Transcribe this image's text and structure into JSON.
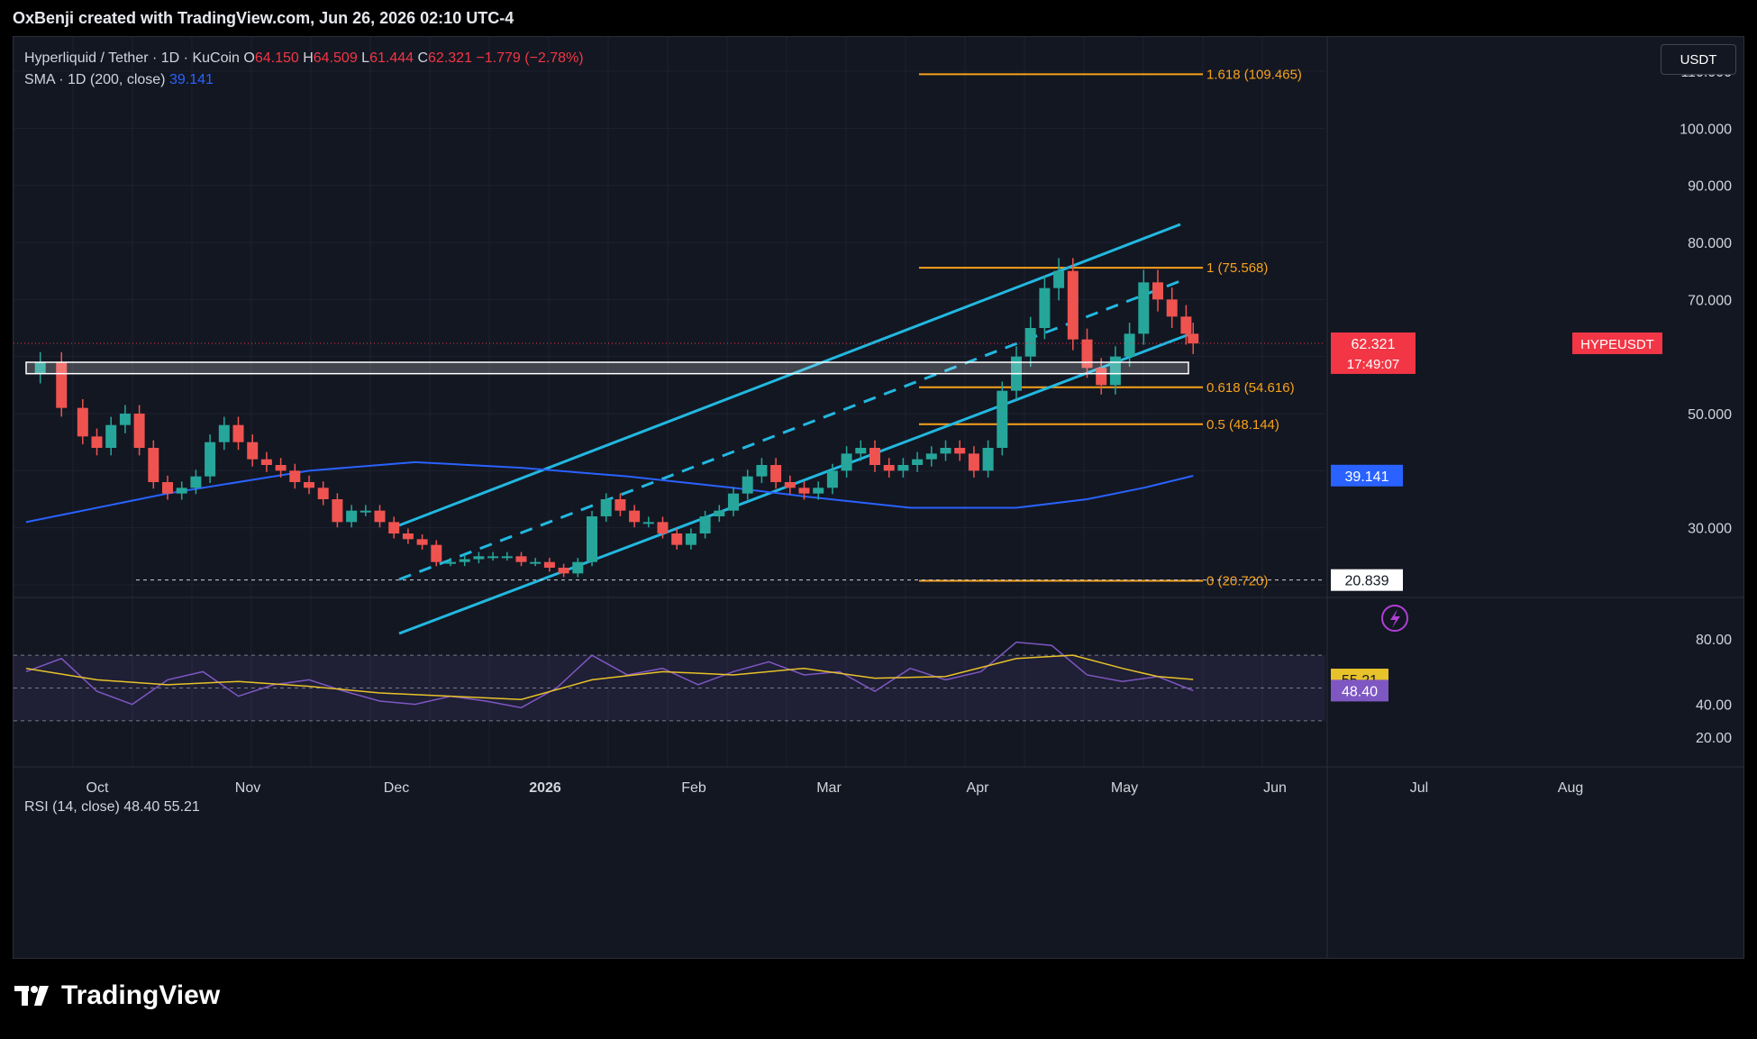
{
  "header": {
    "attribution": "OxBenji created with TradingView.com, Jun 26, 2026 02:10 UTC-4"
  },
  "legend": {
    "symbol": "Hyperliquid / Tether · 1D · KuCoin",
    "open_label": "O",
    "open": "64.150",
    "high_label": "H",
    "high": "64.509",
    "low_label": "L",
    "low": "61.444",
    "close_label": "C",
    "close": "62.321",
    "change": "−1.779 (−2.78%)",
    "sma_label": "SMA · 1D (200, close)",
    "sma_value": "39.141"
  },
  "currency_button": "USDT",
  "price_axis": {
    "ticks": [
      "110.000",
      "100.000",
      "90.000",
      "80.000",
      "70.000",
      "50.000",
      "30.000"
    ],
    "tick_values": [
      110,
      100,
      90,
      80,
      70,
      50,
      30
    ],
    "symbol_tag": "HYPEUSDT",
    "last_price": "62.321",
    "countdown": "17:49:07",
    "sma_tag": "39.141",
    "low_tag": "20.839"
  },
  "fib_levels": [
    {
      "label": "1.618 (109.465)",
      "value": 109.465
    },
    {
      "label": "1 (75.568)",
      "value": 75.568
    },
    {
      "label": "0.618 (54.616)",
      "value": 54.616
    },
    {
      "label": "0.5 (48.144)",
      "value": 48.144
    },
    {
      "label": "0 (20.720)",
      "value": 20.72
    }
  ],
  "rsi": {
    "legend_label": "RSI (14, close)",
    "value": "48.40",
    "ma_value": "55.21",
    "ticks": [
      "80.00",
      "40.00",
      "20.00"
    ],
    "tick_values": [
      80,
      40,
      20
    ]
  },
  "time_axis": [
    "Oct",
    "Nov",
    "Dec",
    "2026",
    "Feb",
    "Mar",
    "Apr",
    "May",
    "Jun",
    "Jul",
    "Aug"
  ],
  "watermark": "TradingView",
  "colors": {
    "background": "#131722",
    "up": "#26a69a",
    "down": "#ef5350",
    "sma": "#2962ff",
    "channel": "#22b8e0",
    "fib": "#f7a21b",
    "rsi": "#7e57c2",
    "rsi_ma": "#e8c22a",
    "last_price": "#f23645"
  },
  "chart_data": {
    "type": "candlestick",
    "symbol": "HYPEUSDT",
    "interval": "1D",
    "last": {
      "open": 64.15,
      "high": 64.509,
      "low": 61.444,
      "close": 62.321
    },
    "sma_200_last": 39.141,
    "swing_low": 20.839,
    "y_range": [
      14,
      115
    ],
    "rsi_range": [
      20,
      85
    ],
    "rsi_bands": [
      70,
      50,
      30
    ],
    "approx_closes": [
      [
        0,
        57
      ],
      [
        2,
        59
      ],
      [
        5,
        51
      ],
      [
        8,
        46
      ],
      [
        10,
        44
      ],
      [
        12,
        48
      ],
      [
        14,
        50
      ],
      [
        16,
        44
      ],
      [
        18,
        38
      ],
      [
        20,
        36
      ],
      [
        22,
        37
      ],
      [
        24,
        39
      ],
      [
        26,
        45
      ],
      [
        28,
        48
      ],
      [
        30,
        45
      ],
      [
        32,
        42
      ],
      [
        34,
        41
      ],
      [
        36,
        40
      ],
      [
        38,
        38
      ],
      [
        40,
        37
      ],
      [
        42,
        35
      ],
      [
        44,
        31
      ],
      [
        46,
        33
      ],
      [
        48,
        33
      ],
      [
        50,
        31
      ],
      [
        52,
        29
      ],
      [
        54,
        28
      ],
      [
        56,
        27
      ],
      [
        58,
        24
      ],
      [
        60,
        24
      ],
      [
        62,
        24.5
      ],
      [
        64,
        25
      ],
      [
        66,
        25
      ],
      [
        68,
        25
      ],
      [
        70,
        24
      ],
      [
        72,
        24
      ],
      [
        74,
        23
      ],
      [
        76,
        22
      ],
      [
        78,
        24
      ],
      [
        80,
        32
      ],
      [
        82,
        35
      ],
      [
        84,
        33
      ],
      [
        86,
        31
      ],
      [
        88,
        31
      ],
      [
        90,
        29
      ],
      [
        92,
        27
      ],
      [
        94,
        29
      ],
      [
        96,
        32
      ],
      [
        98,
        33
      ],
      [
        100,
        36
      ],
      [
        102,
        39
      ],
      [
        104,
        41
      ],
      [
        106,
        38
      ],
      [
        108,
        37
      ],
      [
        110,
        36
      ],
      [
        112,
        37
      ],
      [
        114,
        40
      ],
      [
        116,
        43
      ],
      [
        118,
        44
      ],
      [
        120,
        41
      ],
      [
        122,
        40
      ],
      [
        124,
        41
      ],
      [
        126,
        42
      ],
      [
        128,
        43
      ],
      [
        130,
        44
      ],
      [
        132,
        43
      ],
      [
        134,
        40
      ],
      [
        136,
        44
      ],
      [
        138,
        54
      ],
      [
        140,
        60
      ],
      [
        142,
        65
      ],
      [
        144,
        72
      ],
      [
        146,
        75
      ],
      [
        148,
        63
      ],
      [
        150,
        58
      ],
      [
        152,
        55
      ],
      [
        154,
        60
      ],
      [
        156,
        64
      ],
      [
        158,
        73
      ],
      [
        160,
        70
      ],
      [
        162,
        67
      ],
      [
        164,
        64
      ],
      [
        165,
        62.3
      ]
    ],
    "sma_points": [
      [
        0,
        31
      ],
      [
        20,
        36
      ],
      [
        40,
        40
      ],
      [
        55,
        41.5
      ],
      [
        70,
        40.5
      ],
      [
        85,
        39
      ],
      [
        100,
        37
      ],
      [
        110,
        35.5
      ],
      [
        125,
        33.5
      ],
      [
        140,
        33.5
      ],
      [
        150,
        35
      ],
      [
        158,
        37
      ],
      [
        165,
        39.1
      ]
    ],
    "rsi_points": [
      [
        0,
        60
      ],
      [
        5,
        68
      ],
      [
        10,
        48
      ],
      [
        15,
        40
      ],
      [
        20,
        55
      ],
      [
        25,
        60
      ],
      [
        30,
        45
      ],
      [
        35,
        52
      ],
      [
        40,
        55
      ],
      [
        45,
        48
      ],
      [
        50,
        42
      ],
      [
        55,
        40
      ],
      [
        60,
        45
      ],
      [
        65,
        42
      ],
      [
        70,
        38
      ],
      [
        75,
        50
      ],
      [
        80,
        70
      ],
      [
        85,
        58
      ],
      [
        90,
        62
      ],
      [
        95,
        52
      ],
      [
        100,
        60
      ],
      [
        105,
        66
      ],
      [
        110,
        58
      ],
      [
        115,
        60
      ],
      [
        120,
        48
      ],
      [
        125,
        62
      ],
      [
        130,
        55
      ],
      [
        135,
        60
      ],
      [
        140,
        78
      ],
      [
        145,
        76
      ],
      [
        150,
        58
      ],
      [
        155,
        54
      ],
      [
        160,
        57
      ],
      [
        165,
        48.4
      ]
    ],
    "rsi_ma_points": [
      [
        0,
        62
      ],
      [
        10,
        55
      ],
      [
        20,
        52
      ],
      [
        30,
        54
      ],
      [
        40,
        51
      ],
      [
        50,
        47
      ],
      [
        60,
        45
      ],
      [
        70,
        43
      ],
      [
        80,
        55
      ],
      [
        90,
        60
      ],
      [
        100,
        58
      ],
      [
        110,
        62
      ],
      [
        120,
        56
      ],
      [
        130,
        57
      ],
      [
        140,
        68
      ],
      [
        148,
        70
      ],
      [
        155,
        62
      ],
      [
        160,
        57
      ],
      [
        165,
        55.2
      ]
    ]
  }
}
